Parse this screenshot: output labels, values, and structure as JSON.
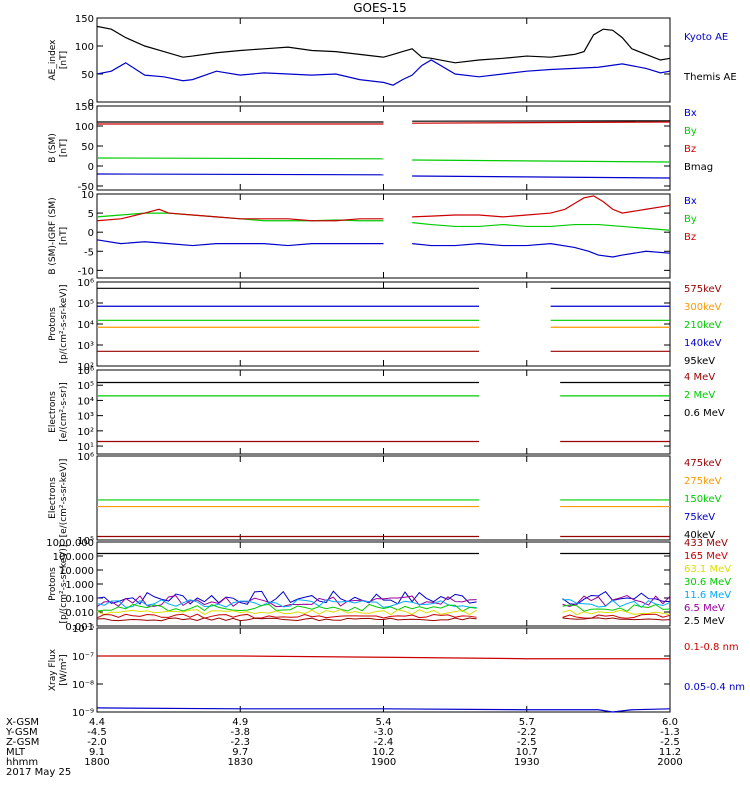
{
  "title": "GOES-15",
  "colors": {
    "black": "#000000",
    "blue": "#0000cc",
    "green": "#00cc00",
    "red": "#cc0000",
    "orange": "#ff9900",
    "lightblue": "#00aaff",
    "purple": "#990099",
    "yellow": "#dddd00",
    "darkred": "#990000"
  },
  "chart_data": [
    {
      "type": "line",
      "ylabel": "AE_index\n[nT]",
      "ylim": [
        0,
        150
      ],
      "yticks": [
        "0",
        "50",
        "100",
        "150"
      ],
      "legend": [
        {
          "text": "Kyoto AE",
          "color": "blue"
        },
        {
          "text": "Themis AE",
          "color": "black"
        }
      ],
      "series": [
        {
          "name": "Kyoto AE",
          "color": "blue",
          "x": [
            0,
            3,
            6,
            10,
            14,
            18,
            20,
            25,
            30,
            35,
            40,
            45,
            50,
            55,
            60,
            62,
            64,
            66,
            68,
            70,
            75,
            80,
            85,
            90,
            95,
            100,
            105,
            110,
            115,
            118,
            120
          ],
          "y": [
            50,
            55,
            70,
            48,
            45,
            38,
            40,
            55,
            48,
            52,
            50,
            48,
            50,
            40,
            35,
            30,
            40,
            48,
            65,
            75,
            50,
            45,
            50,
            55,
            58,
            60,
            62,
            68,
            60,
            52,
            55
          ]
        },
        {
          "name": "Themis AE",
          "color": "black",
          "x": [
            0,
            3,
            6,
            10,
            14,
            18,
            20,
            25,
            30,
            35,
            40,
            45,
            50,
            55,
            60,
            62,
            64,
            66,
            68,
            70,
            75,
            80,
            85,
            90,
            95,
            100,
            102,
            104,
            106,
            108,
            110,
            112,
            115,
            118,
            120
          ],
          "y": [
            135,
            130,
            115,
            100,
            90,
            80,
            82,
            88,
            92,
            95,
            98,
            92,
            90,
            85,
            80,
            85,
            90,
            95,
            80,
            78,
            70,
            75,
            78,
            82,
            80,
            85,
            90,
            120,
            130,
            128,
            115,
            95,
            85,
            75,
            78
          ]
        }
      ],
      "gaps": []
    },
    {
      "type": "line",
      "ylabel": "B (SM)\n[nT]",
      "ylim": [
        -60,
        150
      ],
      "yticks": [
        "-50",
        "0",
        "50",
        "100",
        "150"
      ],
      "legend": [
        {
          "text": "Bx",
          "color": "blue"
        },
        {
          "text": "By",
          "color": "green"
        },
        {
          "text": "Bz",
          "color": "red"
        },
        {
          "text": "Bmag",
          "color": "black"
        }
      ],
      "series": [
        {
          "name": "Bx",
          "color": "blue",
          "x": [
            0,
            60,
            66,
            120
          ],
          "y": [
            -20,
            -22,
            -25,
            -30
          ]
        },
        {
          "name": "By",
          "color": "green",
          "x": [
            0,
            60,
            66,
            120
          ],
          "y": [
            20,
            18,
            15,
            10
          ]
        },
        {
          "name": "Bz",
          "color": "red",
          "x": [
            0,
            60,
            66,
            120
          ],
          "y": [
            105,
            105,
            107,
            110
          ]
        },
        {
          "name": "Bmag",
          "color": "black",
          "x": [
            0,
            60,
            66,
            120
          ],
          "y": [
            110,
            110,
            112,
            113
          ]
        }
      ],
      "gaps": [
        [
          60,
          66
        ]
      ]
    },
    {
      "type": "line",
      "ylabel": "B (SM)-IGRF (SM)\n[nT]",
      "ylim": [
        -12,
        10
      ],
      "yticks": [
        "-10",
        "-5",
        "0",
        "5",
        "10"
      ],
      "legend": [
        {
          "text": "Bx",
          "color": "blue"
        },
        {
          "text": "By",
          "color": "green"
        },
        {
          "text": "Bz",
          "color": "red"
        }
      ],
      "series": [
        {
          "name": "Bx",
          "color": "blue",
          "x": [
            0,
            5,
            10,
            15,
            20,
            25,
            30,
            35,
            40,
            45,
            50,
            55,
            60,
            66,
            70,
            75,
            80,
            85,
            90,
            95,
            100,
            103,
            105,
            108,
            110,
            115,
            120
          ],
          "y": [
            -2,
            -3,
            -2.5,
            -3,
            -3.5,
            -3,
            -3,
            -3,
            -3.5,
            -3,
            -3,
            -3,
            -3,
            -3,
            -3.5,
            -3.5,
            -3,
            -3.5,
            -3.5,
            -3,
            -4,
            -5,
            -6,
            -6.5,
            -6,
            -5,
            -5.5
          ]
        },
        {
          "name": "By",
          "color": "green",
          "x": [
            0,
            5,
            10,
            15,
            20,
            25,
            30,
            35,
            40,
            45,
            50,
            55,
            60,
            66,
            70,
            75,
            80,
            85,
            90,
            95,
            100,
            105,
            110,
            115,
            120
          ],
          "y": [
            4,
            4.5,
            5,
            5,
            4.5,
            4,
            3.5,
            3,
            3,
            3,
            3.2,
            3,
            3,
            2.5,
            2,
            1.5,
            1.5,
            2,
            1.5,
            1.5,
            2,
            2,
            1.5,
            1,
            0.5
          ]
        },
        {
          "name": "Bz",
          "color": "red",
          "x": [
            0,
            5,
            10,
            13,
            15,
            20,
            25,
            30,
            35,
            40,
            45,
            50,
            55,
            60,
            66,
            70,
            75,
            80,
            85,
            90,
            95,
            98,
            100,
            102,
            104,
            106,
            108,
            110,
            115,
            120
          ],
          "y": [
            3,
            3.5,
            5,
            6,
            5,
            4.5,
            4,
            3.5,
            3.5,
            3.5,
            3,
            3,
            3.5,
            3.5,
            4,
            4.2,
            4.5,
            4.5,
            4,
            4.5,
            5,
            6,
            7.5,
            9,
            9.5,
            8,
            6,
            5,
            6,
            7
          ]
        }
      ],
      "gaps": [
        [
          60,
          66
        ]
      ]
    },
    {
      "type": "line",
      "ylabel": "Protons\n[p/(cm²-s-sr-keV)]",
      "ylog": true,
      "ylim": [
        100,
        1000000
      ],
      "yticks": [
        "10²",
        "10³",
        "10⁴",
        "10⁵",
        "10⁶"
      ],
      "legend": [
        {
          "text": "575keV",
          "color": "darkred"
        },
        {
          "text": "300keV",
          "color": "orange"
        },
        {
          "text": "210keV",
          "color": "green"
        },
        {
          "text": "140keV",
          "color": "blue"
        },
        {
          "text": "95keV",
          "color": "black"
        }
      ],
      "series": [
        {
          "name": "95keV",
          "color": "black",
          "x": [
            0,
            80,
            95,
            120
          ],
          "y": [
            500000,
            500000,
            500000,
            500000
          ]
        },
        {
          "name": "140keV",
          "color": "blue",
          "x": [
            0,
            80,
            95,
            120
          ],
          "y": [
            70000,
            70000,
            70000,
            70000
          ]
        },
        {
          "name": "210keV",
          "color": "green",
          "x": [
            0,
            80,
            95,
            120
          ],
          "y": [
            15000,
            15000,
            15000,
            15000
          ]
        },
        {
          "name": "300keV",
          "color": "orange",
          "x": [
            0,
            80,
            95,
            120
          ],
          "y": [
            7000,
            7000,
            7000,
            7000
          ]
        },
        {
          "name": "575keV",
          "color": "darkred",
          "x": [
            0,
            80,
            95,
            120
          ],
          "y": [
            500,
            500,
            500,
            500
          ]
        }
      ],
      "gaps": [
        [
          80,
          95
        ]
      ]
    },
    {
      "type": "line",
      "ylabel": "Electrons\n[e/(cm²-s-sr)]",
      "ylog": true,
      "ylim": [
        3,
        1000000
      ],
      "yticks": [
        "10¹",
        "10²",
        "10³",
        "10⁴",
        "10⁵",
        "10⁶"
      ],
      "legend": [
        {
          "text": "4 MeV",
          "color": "darkred"
        },
        {
          "text": "2 MeV",
          "color": "green"
        },
        {
          "text": "0.6 MeV",
          "color": "black"
        }
      ],
      "series": [
        {
          "name": "0.6 MeV",
          "color": "black",
          "x": [
            0,
            80,
            97,
            120
          ],
          "y": [
            150000,
            150000,
            150000,
            150000
          ]
        },
        {
          "name": "2 MeV",
          "color": "green",
          "x": [
            0,
            80,
            97,
            120
          ],
          "y": [
            20000,
            20000,
            20000,
            20000
          ]
        },
        {
          "name": "4 MeV",
          "color": "darkred",
          "x": [
            0,
            80,
            97,
            120
          ],
          "y": [
            20,
            20,
            20,
            20
          ]
        }
      ],
      "gaps": [
        [
          80,
          97
        ]
      ]
    },
    {
      "type": "line",
      "ylabel": "Electrons\n[e/(cm²-s-sr-keV)]",
      "ylog": true,
      "ylim": [
        100000,
        1000000
      ],
      "yticks": [
        "10⁵",
        "10⁶"
      ],
      "legend": [
        {
          "text": "475keV",
          "color": "darkred"
        },
        {
          "text": "275keV",
          "color": "orange"
        },
        {
          "text": "150keV",
          "color": "green"
        },
        {
          "text": "75keV",
          "color": "blue"
        },
        {
          "text": "40keV",
          "color": "black"
        }
      ],
      "series": [
        {
          "name": "150keV",
          "color": "green",
          "x": [
            0,
            80,
            97,
            120
          ],
          "y": [
            300000,
            300000,
            300000,
            300000
          ]
        },
        {
          "name": "275keV",
          "color": "orange",
          "x": [
            0,
            80,
            97,
            120
          ],
          "y": [
            250000,
            250000,
            250000,
            250000
          ]
        },
        {
          "name": "475keV",
          "color": "darkred",
          "x": [
            0,
            80,
            97,
            120
          ],
          "y": [
            110000,
            110000,
            110000,
            110000
          ]
        }
      ],
      "gaps": [
        [
          80,
          97
        ]
      ]
    },
    {
      "type": "line",
      "ylabel": "Protons\n[p/(cm²-s-sr-keV)]",
      "ylog": true,
      "ylim": [
        0.001,
        1000
      ],
      "yticks": [
        "0.001",
        "0.010",
        "0.100",
        "1.000",
        "10.000",
        "100.000",
        "1000.000"
      ],
      "legend": [
        {
          "text": "433 MeV",
          "color": "darkred"
        },
        {
          "text": "165 MeV",
          "color": "red"
        },
        {
          "text": "63.1 MeV",
          "color": "yellow"
        },
        {
          "text": "30.6 MeV",
          "color": "green"
        },
        {
          "text": "11.6 MeV",
          "color": "lightblue"
        },
        {
          "text": "6.5 MeV",
          "color": "purple"
        },
        {
          "text": "2.5 MeV",
          "color": "black"
        }
      ],
      "series": [
        {
          "name": "2.5 MeV",
          "color": "black",
          "x": [
            0,
            80,
            97,
            120
          ],
          "y": [
            150,
            150,
            150,
            150
          ]
        }
      ],
      "noisy": [
        {
          "color": "blue",
          "base": 0.1,
          "amp": 1.0
        },
        {
          "color": "purple",
          "base": 0.06,
          "amp": 0.8
        },
        {
          "color": "lightblue",
          "base": 0.04,
          "amp": 0.6
        },
        {
          "color": "green",
          "base": 0.02,
          "amp": 0.5
        },
        {
          "color": "yellow",
          "base": 0.01,
          "amp": 0.4
        },
        {
          "color": "red",
          "base": 0.005,
          "amp": 0.3
        },
        {
          "color": "darkred",
          "base": 0.003,
          "amp": 0.2
        }
      ],
      "gaps": [
        [
          80,
          97
        ]
      ]
    },
    {
      "type": "line",
      "ylabel": "Xray Flux\n[W/m²]",
      "ylog": true,
      "ylim": [
        1e-09,
        1e-06
      ],
      "yticks": [
        "10⁻⁹",
        "10⁻⁸",
        "10⁻⁷",
        "10⁻⁶"
      ],
      "legend": [
        {
          "text": "0.1-0.8 nm",
          "color": "red"
        },
        {
          "text": "0.05-0.4 nm",
          "color": "blue"
        }
      ],
      "series": [
        {
          "name": "0.1-0.8 nm",
          "color": "red",
          "x": [
            0,
            30,
            60,
            90,
            120
          ],
          "y": [
            1e-07,
            1e-07,
            9e-08,
            8e-08,
            8e-08
          ]
        },
        {
          "name": "0.05-0.4 nm",
          "color": "blue",
          "x": [
            0,
            30,
            60,
            90,
            105,
            108,
            112,
            120
          ],
          "y": [
            1.4e-09,
            1.3e-09,
            1.3e-09,
            1.2e-09,
            1.2e-09,
            1e-09,
            1.2e-09,
            1.3e-09
          ]
        }
      ],
      "gaps": []
    }
  ],
  "footer": {
    "row_labels": [
      "X-GSM",
      "Y-GSM",
      "Z-GSM",
      "MLT",
      "hhmm",
      "2017 May 25"
    ],
    "columns": [
      {
        "x": 0,
        "values": [
          "4.4",
          "-4.5",
          "-2.0",
          "9.1",
          "1800"
        ]
      },
      {
        "x": 30,
        "values": [
          "4.9",
          "-3.8",
          "-2.3",
          "9.7",
          "1830"
        ]
      },
      {
        "x": 60,
        "values": [
          "5.4",
          "-3.0",
          "-2.4",
          "10.2",
          "1900"
        ]
      },
      {
        "x": 90,
        "values": [
          "5.7",
          "-2.2",
          "-2.5",
          "10.7",
          "1930"
        ]
      },
      {
        "x": 120,
        "values": [
          "6.0",
          "-1.3",
          "-2.5",
          "11.2",
          "2000"
        ]
      }
    ]
  }
}
